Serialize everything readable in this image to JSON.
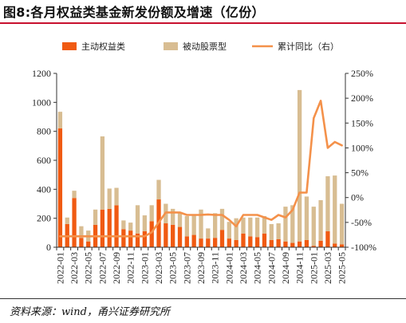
{
  "title": "图8:各月权益类基金新发份额及增速（亿份）",
  "source": "资料来源：wind，甬兴证券研究所",
  "colors": {
    "active": "#f05a12",
    "passive": "#d8bd92",
    "growth": "#f4914a",
    "title_rule": "#c8102e"
  },
  "chart_data": {
    "type": "bar",
    "stacked": true,
    "categories": [
      "2022-01",
      "2022-02",
      "2022-03",
      "2022-04",
      "2022-05",
      "2022-06",
      "2022-07",
      "2022-08",
      "2022-09",
      "2022-10",
      "2022-11",
      "2022-12",
      "2023-01",
      "2023-02",
      "2023-03",
      "2023-04",
      "2023-05",
      "2023-06",
      "2023-07",
      "2023-08",
      "2023-09",
      "2023-10",
      "2023-11",
      "2023-12",
      "2024-01",
      "2024-02",
      "2024-03",
      "2024-04",
      "2024-05",
      "2024-06",
      "2024-07",
      "2024-08",
      "2024-09",
      "2024-10",
      "2024-11",
      "2024-12",
      "2025-01",
      "2025-02",
      "2025-03",
      "2025-04",
      "2025-05"
    ],
    "tick_labels": [
      "2022-01",
      "2022-03",
      "2022-05",
      "2022-07",
      "2022-09",
      "2022-11",
      "2023-01",
      "2023-03",
      "2023-05",
      "2023-07",
      "2023-09",
      "2023-11",
      "2024-01",
      "2024-03",
      "2024-05",
      "2024-07",
      "2024-09",
      "2024-11",
      "2025-01",
      "2025-03",
      "2025-05"
    ],
    "series": [
      {
        "name": "主动权益类",
        "axis": "left",
        "type": "bar",
        "values": [
          820,
          160,
          340,
          65,
          40,
          155,
          260,
          265,
          290,
          125,
          115,
          95,
          110,
          180,
          330,
          165,
          155,
          140,
          75,
          85,
          60,
          60,
          65,
          120,
          60,
          50,
          95,
          75,
          70,
          95,
          50,
          55,
          40,
          30,
          40,
          50,
          10,
          45,
          110,
          25,
          20
        ]
      },
      {
        "name": "被动股票型",
        "axis": "left",
        "type": "bar",
        "values": [
          115,
          45,
          50,
          80,
          75,
          105,
          505,
          140,
          120,
          60,
          55,
          195,
          110,
          110,
          135,
          135,
          110,
          100,
          140,
          140,
          200,
          70,
          170,
          145,
          115,
          150,
          110,
          130,
          135,
          120,
          110,
          110,
          240,
          260,
          1045,
          300,
          270,
          280,
          380,
          470,
          280
        ]
      },
      {
        "name": "累计同比（右）",
        "axis": "right",
        "type": "line",
        "values": [
          -78,
          -78,
          -78,
          -78,
          -78,
          -78,
          -78,
          -78,
          -78,
          -78,
          -78,
          -78,
          -78,
          -70,
          -50,
          -30,
          -30,
          -30,
          -35,
          -35,
          -35,
          -34,
          -35,
          -35,
          -45,
          -58,
          -35,
          -35,
          -35,
          -40,
          -45,
          -35,
          -40,
          -25,
          10,
          10,
          160,
          195,
          100,
          112,
          105
        ]
      }
    ],
    "ylim_left": [
      0,
      1200
    ],
    "yticks_left": [
      "0",
      "200",
      "400",
      "600",
      "800",
      "1000",
      "1200"
    ],
    "ylim_right": [
      -100,
      250
    ],
    "yticks_right": [
      "-100%",
      "-50%",
      "0%",
      "50%",
      "100%",
      "150%",
      "200%",
      "250%"
    ],
    "legend_position": "top",
    "grid": false
  }
}
